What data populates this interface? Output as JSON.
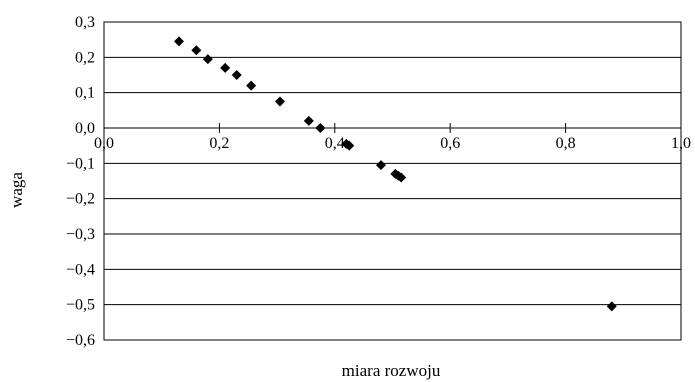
{
  "chart_data": {
    "type": "scatter",
    "xlabel": "miara rozwoju",
    "ylabel": "waga",
    "xlim": [
      0.0,
      1.0
    ],
    "ylim": [
      -0.6,
      0.3
    ],
    "x_ticks": [
      {
        "value": 0.0,
        "label": "0,0"
      },
      {
        "value": 0.2,
        "label": "0,2"
      },
      {
        "value": 0.4,
        "label": "0,4"
      },
      {
        "value": 0.6,
        "label": "0,6"
      },
      {
        "value": 0.8,
        "label": "0,8"
      },
      {
        "value": 1.0,
        "label": "1,0"
      }
    ],
    "y_ticks": [
      {
        "value": 0.3,
        "label": "0,3"
      },
      {
        "value": 0.2,
        "label": "0,2"
      },
      {
        "value": 0.1,
        "label": "0,1"
      },
      {
        "value": 0.0,
        "label": "0,0"
      },
      {
        "value": -0.1,
        "label": "−0,1"
      },
      {
        "value": -0.2,
        "label": "−0,2"
      },
      {
        "value": -0.3,
        "label": "−0,3"
      },
      {
        "value": -0.4,
        "label": "−0,4"
      },
      {
        "value": -0.5,
        "label": "−0,5"
      },
      {
        "value": -0.6,
        "label": "−0,6"
      }
    ],
    "grid": "horizontal",
    "marker": "diamond",
    "marker_color": "#000000",
    "points": [
      {
        "x": 0.13,
        "y": 0.245
      },
      {
        "x": 0.16,
        "y": 0.22
      },
      {
        "x": 0.18,
        "y": 0.195
      },
      {
        "x": 0.21,
        "y": 0.17
      },
      {
        "x": 0.23,
        "y": 0.15
      },
      {
        "x": 0.255,
        "y": 0.12
      },
      {
        "x": 0.305,
        "y": 0.075
      },
      {
        "x": 0.355,
        "y": 0.02
      },
      {
        "x": 0.375,
        "y": 0.0
      },
      {
        "x": 0.42,
        "y": -0.045
      },
      {
        "x": 0.425,
        "y": -0.05
      },
      {
        "x": 0.48,
        "y": -0.105
      },
      {
        "x": 0.505,
        "y": -0.13
      },
      {
        "x": 0.51,
        "y": -0.135
      },
      {
        "x": 0.515,
        "y": -0.14
      },
      {
        "x": 0.88,
        "y": -0.505
      }
    ]
  }
}
